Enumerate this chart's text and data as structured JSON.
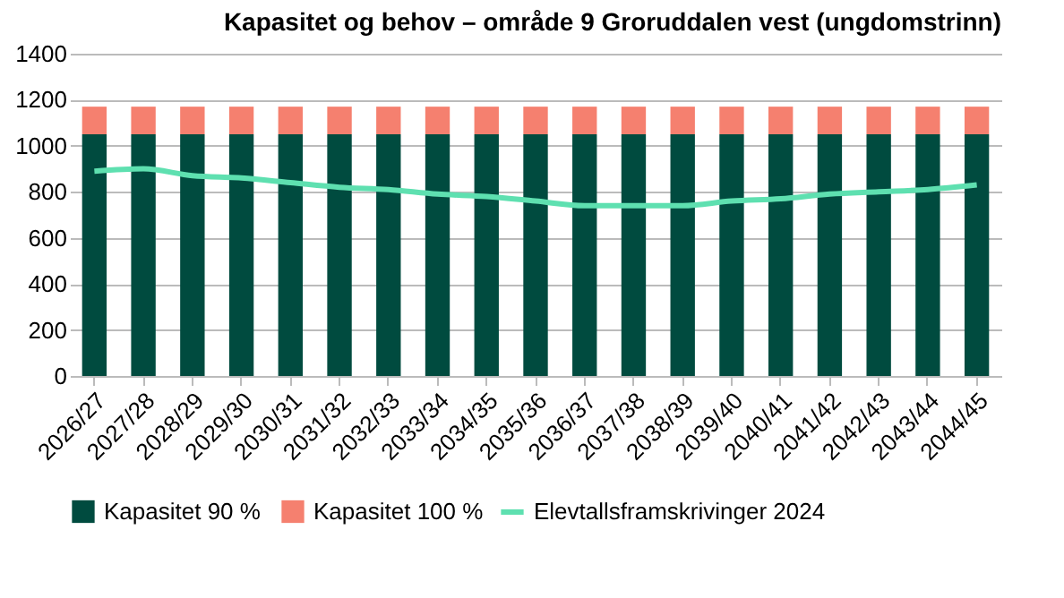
{
  "chart_data": {
    "type": "bar",
    "title": "Kapasitet og behov – område 9 Groruddalen vest (ungdomstrinn)",
    "categories": [
      "2026/27",
      "2027/28",
      "2028/29",
      "2029/30",
      "2030/31",
      "2031/32",
      "2032/33",
      "2033/34",
      "2034/35",
      "2035/36",
      "2036/37",
      "2037/38",
      "2038/39",
      "2039/40",
      "2040/41",
      "2041/42",
      "2042/43",
      "2043/44",
      "2044/45"
    ],
    "stacked": true,
    "series": [
      {
        "name": "Kapasitet 90 %",
        "color": "#004b3f",
        "values": [
          1050,
          1050,
          1050,
          1050,
          1050,
          1050,
          1050,
          1050,
          1050,
          1050,
          1050,
          1050,
          1050,
          1050,
          1050,
          1050,
          1050,
          1050,
          1050
        ]
      },
      {
        "name": "Kapasitet 100 %",
        "color": "#f5806f",
        "values": [
          120,
          120,
          120,
          120,
          120,
          120,
          120,
          120,
          120,
          120,
          120,
          120,
          120,
          120,
          120,
          120,
          120,
          120,
          120
        ]
      },
      {
        "name": "Elevtallsframskrivinger 2024",
        "type": "line",
        "color": "#5ee0b0",
        "values": [
          890,
          900,
          870,
          860,
          840,
          820,
          810,
          790,
          780,
          760,
          740,
          740,
          740,
          760,
          770,
          790,
          800,
          810,
          830
        ]
      }
    ],
    "ylim": [
      0,
      1400
    ],
    "yticks": [
      0,
      200,
      400,
      600,
      800,
      1000,
      1200,
      1400
    ],
    "grid": "y",
    "legend": "bottom"
  }
}
